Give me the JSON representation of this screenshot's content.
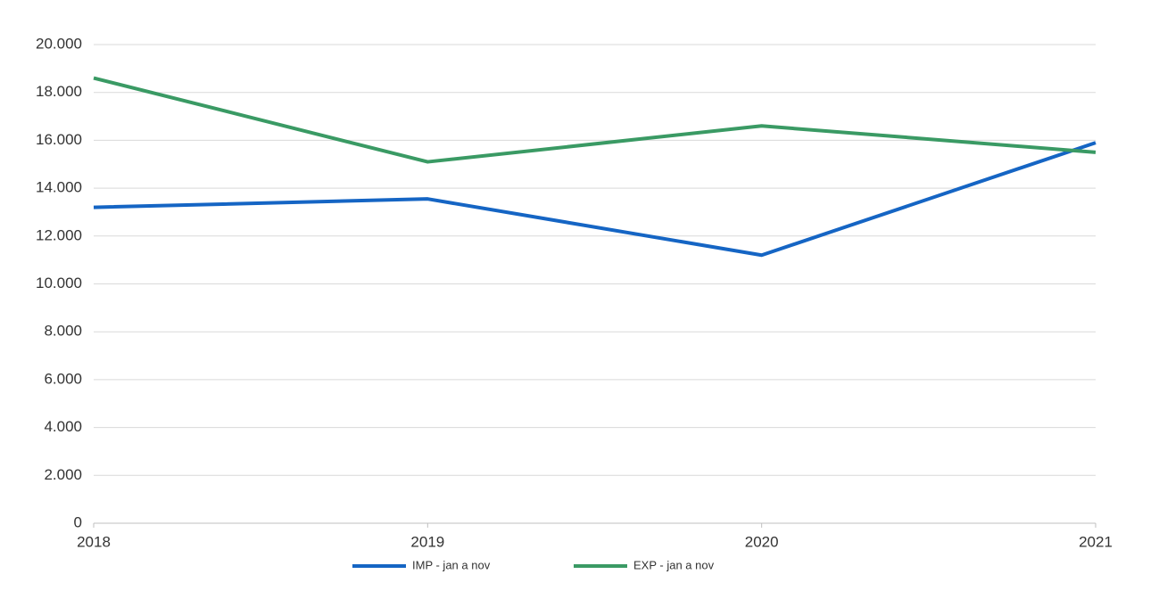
{
  "chart_data": {
    "type": "line",
    "x": [
      2018,
      2019,
      2020,
      2021
    ],
    "xlim": [
      2018,
      2021
    ],
    "xticks": [
      2018,
      2019,
      2020,
      2021
    ],
    "ylim": [
      0,
      20000
    ],
    "yticks": [
      0,
      {
        "value": 2000,
        "label": "2.000"
      },
      {
        "value": 4000,
        "label": "4.000"
      },
      {
        "value": 6000,
        "label": "6.000"
      },
      {
        "value": 8000,
        "label": "8.000"
      },
      {
        "value": 10000,
        "label": "10.000"
      },
      {
        "value": 12000,
        "label": "12.000"
      },
      {
        "value": 14000,
        "label": "14.000"
      },
      {
        "value": 16000,
        "label": "16.000"
      },
      {
        "value": 18000,
        "label": "18.000"
      },
      {
        "value": 20000,
        "label": "20.000"
      }
    ],
    "grid": true,
    "legend": "bottom",
    "series": [
      {
        "name": "IMP - jan a nov",
        "color": "#1565c4",
        "values": [
          13200,
          13550,
          11200,
          15900
        ]
      },
      {
        "name": "EXP - jan a nov",
        "color": "#3a9a64",
        "values": [
          18600,
          15100,
          16600,
          15500
        ]
      }
    ]
  }
}
